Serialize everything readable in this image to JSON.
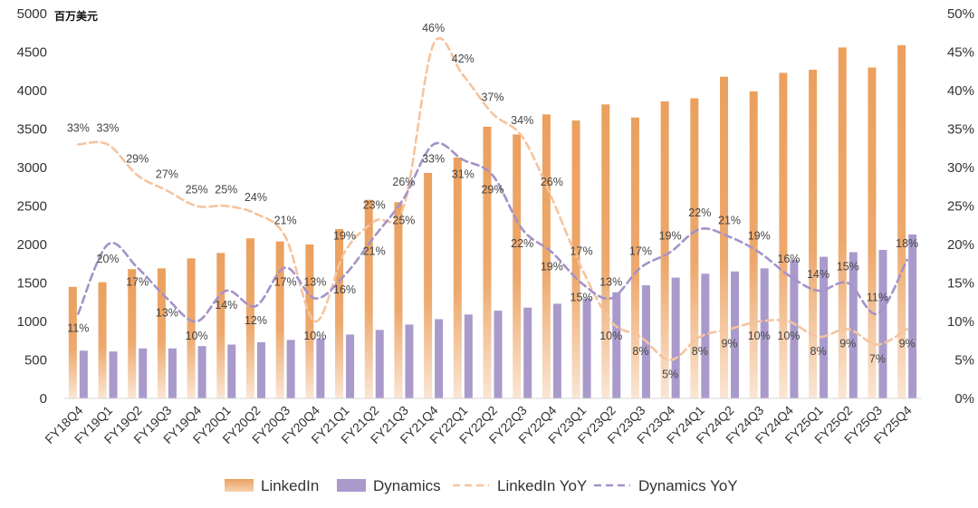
{
  "chart_data": {
    "type": "bar",
    "unit_label": "百万美元",
    "categories": [
      "FY18Q4",
      "FY19Q1",
      "FY19Q2",
      "FY19Q3",
      "FY19Q4",
      "FY20Q1",
      "FY20Q2",
      "FY20Q3",
      "FY20Q4",
      "FY21Q1",
      "FY21Q2",
      "FY21Q3",
      "FY21Q4",
      "FY22Q1",
      "FY22Q2",
      "FY22Q3",
      "FY22Q4",
      "FY23Q1",
      "FY23Q2",
      "FY23Q3",
      "FY23Q4",
      "FY24Q1",
      "FY24Q2",
      "FY24Q3",
      "FY24Q4",
      "FY25Q1",
      "FY25Q2",
      "FY25Q3",
      "FY25Q4"
    ],
    "y_left": {
      "min": 0,
      "max": 5000,
      "ticks": [
        "0",
        "500",
        "1000",
        "1500",
        "2000",
        "2500",
        "3000",
        "3500",
        "4000",
        "4500",
        "5000"
      ]
    },
    "y_right": {
      "min": 0,
      "max": 50,
      "ticks": [
        "0%",
        "5%",
        "10%",
        "15%",
        "20%",
        "25%",
        "30%",
        "35%",
        "40%",
        "45%",
        "50%"
      ]
    },
    "series": [
      {
        "name": "LinkedIn",
        "kind": "bar",
        "color": "#EBA05E",
        "color_light": "#FAE2CD",
        "values": [
          1450,
          1510,
          1680,
          1690,
          1820,
          1890,
          2080,
          2040,
          2000,
          2200,
          2580,
          2550,
          2930,
          3130,
          3530,
          3430,
          3690,
          3610,
          3820,
          3650,
          3860,
          3900,
          4180,
          3990,
          4230,
          4270,
          4560,
          4300,
          4590
        ]
      },
      {
        "name": "Dynamics",
        "kind": "bar",
        "color": "#A99ACB",
        "values": [
          620,
          610,
          650,
          650,
          680,
          700,
          730,
          760,
          780,
          830,
          890,
          960,
          1030,
          1090,
          1140,
          1180,
          1230,
          1300,
          1380,
          1470,
          1570,
          1620,
          1650,
          1690,
          1800,
          1840,
          1900,
          1930,
          2130
        ]
      },
      {
        "name": "LinkedIn YoY",
        "kind": "line",
        "dashed": true,
        "color": "#F5C49E",
        "values": [
          33,
          33,
          29,
          27,
          25,
          25,
          24,
          21,
          10,
          19,
          23,
          25,
          46,
          42,
          37,
          34,
          26,
          17,
          10,
          8,
          5,
          8,
          9,
          10,
          10,
          8,
          9,
          7,
          9
        ],
        "labels": [
          "33%",
          "33%",
          "29%",
          "27%",
          "25%",
          "25%",
          "24%",
          "21%",
          "10%",
          "19%",
          "23%",
          "25%",
          "46%",
          "42%",
          "37%",
          "34%",
          "26%",
          "17%",
          "10%",
          "8%",
          "5%",
          "8%",
          "9%",
          "10%",
          "10%",
          "8%",
          "9%",
          "7%",
          "9%"
        ]
      },
      {
        "name": "Dynamics YoY",
        "kind": "line",
        "dashed": true,
        "color": "#A493C8",
        "values": [
          11,
          20,
          17,
          13,
          10,
          14,
          12,
          17,
          13,
          16,
          21,
          26,
          33,
          31,
          29,
          22,
          19,
          15,
          13,
          17,
          19,
          22,
          21,
          19,
          16,
          14,
          15,
          11,
          18
        ],
        "labels": [
          "11%",
          "20%",
          "17%",
          "13%",
          "10%",
          "14%",
          "12%",
          "17%",
          "13%",
          "16%",
          "21%",
          "26%",
          "33%",
          "31%",
          "29%",
          "22%",
          "19%",
          "15%",
          "13%",
          "17%",
          "19%",
          "22%",
          "21%",
          "19%",
          "16%",
          "14%",
          "15%",
          "11%",
          "18%"
        ]
      }
    ],
    "legend": [
      "LinkedIn",
      "Dynamics",
      "LinkedIn YoY",
      "Dynamics YoY"
    ],
    "legend_position": "bottom"
  }
}
